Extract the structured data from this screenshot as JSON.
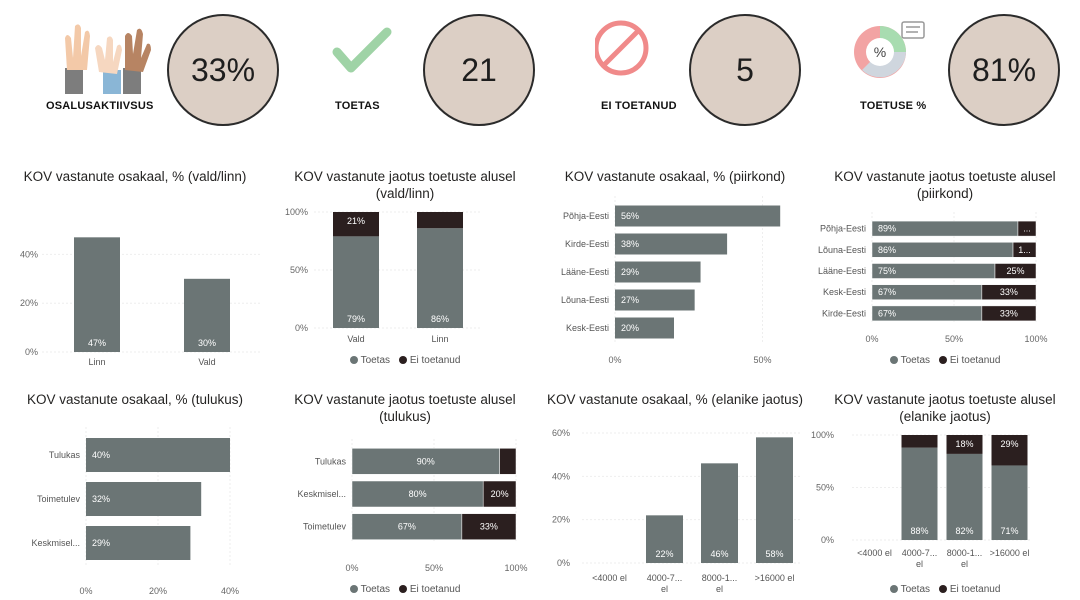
{
  "kpis": [
    {
      "label": "OSALUSAKTIIVSUS",
      "value": "33%",
      "icon": "raised-hands-icon"
    },
    {
      "label": "TOETAS",
      "value": "21",
      "icon": "checkmark-icon"
    },
    {
      "label": "EI TOETANUD",
      "value": "5",
      "icon": "prohibited-icon"
    },
    {
      "label": "TOETUSE %",
      "value": "81%",
      "icon": "percent-pie-icon"
    }
  ],
  "colors": {
    "toetas": "#6b7575",
    "ei_toetanud": "#2b1f1f",
    "kpi_circle": "#dccfc5"
  },
  "legend": {
    "toetas": "Toetas",
    "ei_toetanud": "Ei toetanud"
  },
  "chart_data": [
    {
      "id": "c1",
      "type": "bar",
      "title": "KOV vastanute osakaal, % (vald/linn)",
      "categories": [
        "Linn",
        "Vald"
      ],
      "values": [
        47,
        30
      ],
      "value_labels": [
        "47%",
        "30%"
      ],
      "ylim": [
        0,
        50
      ],
      "yticks": [
        "0%",
        "20%",
        "40%"
      ],
      "ytick_values": [
        0,
        20,
        40
      ]
    },
    {
      "id": "c2",
      "type": "bar",
      "stacked": true,
      "title": "KOV vastanute jaotus toetuste alusel (vald/linn)",
      "categories": [
        "Vald",
        "Linn"
      ],
      "series": [
        {
          "name": "Toetas",
          "values": [
            79,
            86
          ],
          "labels": [
            "79%",
            "86%"
          ]
        },
        {
          "name": "Ei toetanud",
          "values": [
            21,
            14
          ],
          "labels": [
            "21%",
            ""
          ]
        }
      ],
      "yticks": [
        "0%",
        "50%",
        "100%"
      ],
      "ytick_values": [
        0,
        50,
        100
      ],
      "legend": "bottom"
    },
    {
      "id": "c3",
      "type": "bar",
      "orientation": "horizontal",
      "title": "KOV vastanute osakaal, % (piirkond)",
      "categories": [
        "Põhja-Eesti",
        "Kirde-Eesti",
        "Lääne-Eesti",
        "Lõuna-Eesti",
        "Kesk-Eesti"
      ],
      "values": [
        56,
        38,
        29,
        27,
        20
      ],
      "value_labels": [
        "56%",
        "38%",
        "29%",
        "27%",
        "20%"
      ],
      "xlim": [
        0,
        60
      ],
      "xticks": [
        "0%",
        "50%"
      ],
      "xtick_values": [
        0,
        50
      ]
    },
    {
      "id": "c4",
      "type": "bar",
      "orientation": "horizontal",
      "stacked": true,
      "title": "KOV vastanute jaotus toetuste alusel (piirkond)",
      "categories": [
        "Põhja-Eesti",
        "Lõuna-Eesti",
        "Lääne-Eesti",
        "Kesk-Eesti",
        "Kirde-Eesti"
      ],
      "series": [
        {
          "name": "Toetas",
          "values": [
            89,
            86,
            75,
            67,
            67
          ],
          "labels": [
            "89%",
            "86%",
            "75%",
            "67%",
            "67%"
          ]
        },
        {
          "name": "Ei toetanud",
          "values": [
            11,
            14,
            25,
            33,
            33
          ],
          "labels": [
            "...",
            "1...",
            "25%",
            "33%",
            "33%"
          ]
        }
      ],
      "xticks": [
        "0%",
        "50%",
        "100%"
      ],
      "xtick_values": [
        0,
        50,
        100
      ],
      "legend": "bottom"
    },
    {
      "id": "c5",
      "type": "bar",
      "orientation": "horizontal",
      "title": "KOV vastanute osakaal, % (tulukus)",
      "categories": [
        "Tulukas",
        "Toimetulev",
        "Keskmisel..."
      ],
      "values": [
        40,
        32,
        29
      ],
      "value_labels": [
        "40%",
        "32%",
        "29%"
      ],
      "xlim": [
        0,
        40
      ],
      "xticks": [
        "0%",
        "20%",
        "40%"
      ],
      "xtick_values": [
        0,
        20,
        40
      ]
    },
    {
      "id": "c6",
      "type": "bar",
      "orientation": "horizontal",
      "stacked": true,
      "title": "KOV vastanute jaotus toetuste alusel (tulukus)",
      "categories": [
        "Tulukas",
        "Keskmisel...",
        "Toimetulev"
      ],
      "series": [
        {
          "name": "Toetas",
          "values": [
            90,
            80,
            67
          ],
          "labels": [
            "90%",
            "80%",
            "67%"
          ]
        },
        {
          "name": "Ei toetanud",
          "values": [
            10,
            20,
            33
          ],
          "labels": [
            "",
            "20%",
            "33%"
          ]
        }
      ],
      "xticks": [
        "0%",
        "50%",
        "100%"
      ],
      "xtick_values": [
        0,
        50,
        100
      ],
      "legend": "bottom"
    },
    {
      "id": "c7",
      "type": "bar",
      "title": "KOV vastanute osakaal, % (elanike jaotus)",
      "categories": [
        "<4000 el",
        "4000-7... el",
        "8000-1... el",
        ">16000 el"
      ],
      "values": [
        0,
        22,
        46,
        58
      ],
      "value_labels": [
        "",
        "22%",
        "46%",
        "58%"
      ],
      "ylim": [
        0,
        60
      ],
      "yticks": [
        "0%",
        "20%",
        "40%",
        "60%"
      ],
      "ytick_values": [
        0,
        20,
        40,
        60
      ]
    },
    {
      "id": "c8",
      "type": "bar",
      "stacked": true,
      "title": "KOV vastanute jaotus toetuste alusel (elanike jaotus)",
      "categories": [
        "<4000 el",
        "4000-7... el",
        "8000-1... el",
        ">16000 el"
      ],
      "series": [
        {
          "name": "Toetas",
          "values": [
            0,
            88,
            82,
            71
          ],
          "labels": [
            "",
            "88%",
            "82%",
            "71%"
          ]
        },
        {
          "name": "Ei toetanud",
          "values": [
            0,
            12,
            18,
            29
          ],
          "labels": [
            "",
            "",
            "18%",
            "29%"
          ]
        }
      ],
      "yticks": [
        "0%",
        "50%",
        "100%"
      ],
      "ytick_values": [
        0,
        50,
        100
      ],
      "legend": "bottom"
    }
  ]
}
